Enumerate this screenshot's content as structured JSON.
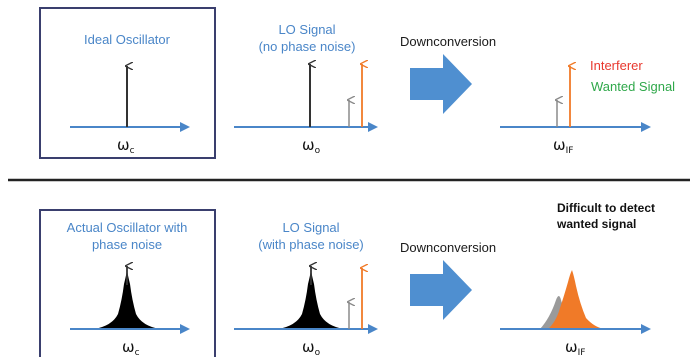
{
  "colors": {
    "axis": "#4a86c8",
    "box_border": "#3a3f6e",
    "interferer": "#f07a28",
    "wanted": "#8a8a8a",
    "block_arrow": "#4f8fd0",
    "interferer_text": "#e8382e",
    "wanted_text": "#2fa84a",
    "noise": "#000000",
    "divider": "#222222"
  },
  "top_row": {
    "ideal_title": "Ideal Oscillator",
    "lo_title_line1": "LO Signal",
    "lo_title_line2": "(no phase noise)",
    "downconversion": "Downconversion",
    "interferer_label": "Interferer",
    "wanted_label": "Wanted Signal",
    "omega_c": "ω",
    "omega_c_sub": "c",
    "omega_o": "ω",
    "omega_o_sub": "o",
    "omega_if": "ω",
    "omega_if_sub": "IF"
  },
  "bottom_row": {
    "actual_title_line1": "Actual Oscillator with",
    "actual_title_line2": "phase noise",
    "lo_title_line1": "LO Signal",
    "lo_title_line2": "(with phase noise)",
    "downconversion": "Downconversion",
    "difficult_line1": "Difficult to detect",
    "difficult_line2": "wanted signal",
    "omega_c": "ω",
    "omega_c_sub": "c",
    "omega_o": "ω",
    "omega_o_sub": "o",
    "omega_if": "ω",
    "omega_if_sub": "IF"
  }
}
